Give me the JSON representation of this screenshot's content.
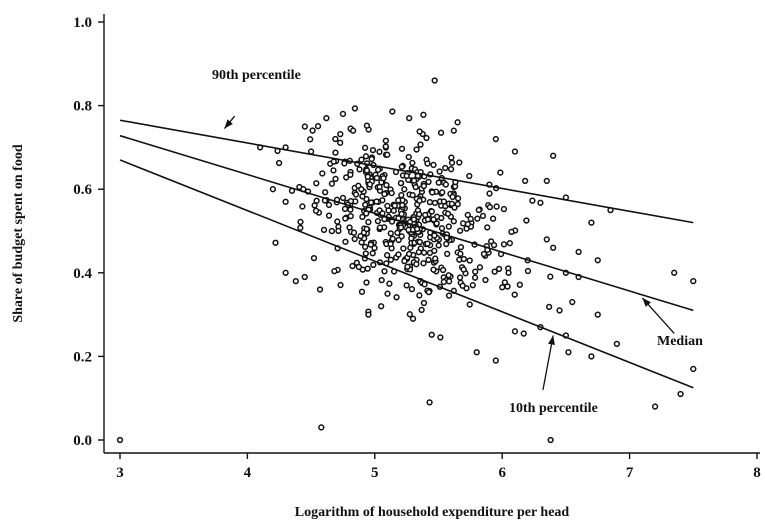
{
  "chart_data": {
    "type": "scatter",
    "xlabel": "Logarithm of household expenditure per head",
    "ylabel": "Share of budget spent on food",
    "xlim": [
      3,
      8
    ],
    "ylim": [
      0,
      1.0
    ],
    "x_ticks": [
      3,
      4,
      5,
      6,
      7,
      8
    ],
    "x_tick_labels": [
      "3",
      "4",
      "5",
      "6",
      "7",
      "8"
    ],
    "y_ticks": [
      0,
      0.2,
      0.4,
      0.6,
      0.8,
      1.0
    ],
    "y_tick_labels": [
      "0.0",
      "0.2",
      "0.4",
      "0.6",
      "0.8",
      "1.0"
    ],
    "grid": false,
    "lines": [
      {
        "name": "90th percentile",
        "x": [
          3.0,
          7.5
        ],
        "y": [
          0.765,
          0.52
        ]
      },
      {
        "name": "Median",
        "x": [
          3.0,
          7.5
        ],
        "y": [
          0.728,
          0.31
        ]
      },
      {
        "name": "10th percentile",
        "x": [
          3.0,
          7.5
        ],
        "y": [
          0.67,
          0.125
        ]
      }
    ],
    "annotations": [
      {
        "text": "90th percentile",
        "arrow_from": [
          3.9,
          0.775
        ],
        "arrow_to": [
          3.82,
          0.745
        ]
      },
      {
        "text": "Median",
        "arrow_from": [
          7.35,
          0.255
        ],
        "arrow_to": [
          7.1,
          0.34
        ]
      },
      {
        "text": "10th percentile",
        "arrow_from": [
          6.32,
          0.12
        ],
        "arrow_to": [
          6.4,
          0.25
        ]
      }
    ],
    "scatter_points": [
      [
        3.0,
        0.0
      ],
      [
        4.58,
        0.03
      ],
      [
        5.43,
        0.09
      ],
      [
        6.38,
        0.0
      ],
      [
        4.3,
        0.4
      ],
      [
        4.38,
        0.38
      ],
      [
        4.45,
        0.39
      ],
      [
        4.57,
        0.36
      ],
      [
        4.75,
        0.78
      ],
      [
        4.62,
        0.77
      ],
      [
        4.83,
        0.74
      ],
      [
        5.47,
        0.86
      ],
      [
        5.27,
        0.77
      ],
      [
        5.65,
        0.76
      ],
      [
        5.62,
        0.74
      ],
      [
        5.95,
        0.72
      ],
      [
        6.1,
        0.69
      ],
      [
        6.4,
        0.68
      ],
      [
        6.18,
        0.62
      ],
      [
        6.35,
        0.62
      ],
      [
        6.5,
        0.58
      ],
      [
        6.85,
        0.55
      ],
      [
        6.7,
        0.52
      ],
      [
        4.1,
        0.7
      ],
      [
        4.3,
        0.7
      ],
      [
        4.5,
        0.69
      ],
      [
        4.2,
        0.6
      ],
      [
        4.3,
        0.57
      ],
      [
        6.05,
        0.4
      ],
      [
        6.2,
        0.43
      ],
      [
        6.4,
        0.46
      ],
      [
        6.5,
        0.4
      ],
      [
        6.6,
        0.39
      ],
      [
        6.75,
        0.43
      ],
      [
        6.45,
        0.31
      ],
      [
        6.55,
        0.33
      ],
      [
        6.75,
        0.3
      ],
      [
        6.1,
        0.26
      ],
      [
        6.3,
        0.27
      ],
      [
        5.8,
        0.21
      ],
      [
        5.95,
        0.19
      ],
      [
        6.5,
        0.25
      ],
      [
        6.52,
        0.21
      ],
      [
        6.7,
        0.2
      ],
      [
        6.9,
        0.23
      ],
      [
        5.3,
        0.29
      ],
      [
        5.05,
        0.32
      ],
      [
        4.95,
        0.3
      ],
      [
        5.1,
        0.35
      ],
      [
        5.25,
        0.37
      ],
      [
        7.2,
        0.08
      ],
      [
        7.4,
        0.11
      ],
      [
        7.5,
        0.17
      ],
      [
        7.35,
        0.4
      ],
      [
        7.5,
        0.38
      ],
      [
        6.35,
        0.48
      ],
      [
        6.6,
        0.45
      ]
    ],
    "scatter_cluster": {
      "cx": 5.25,
      "cy": 0.53,
      "sx": 0.38,
      "sy": 0.09,
      "count": 520
    }
  }
}
